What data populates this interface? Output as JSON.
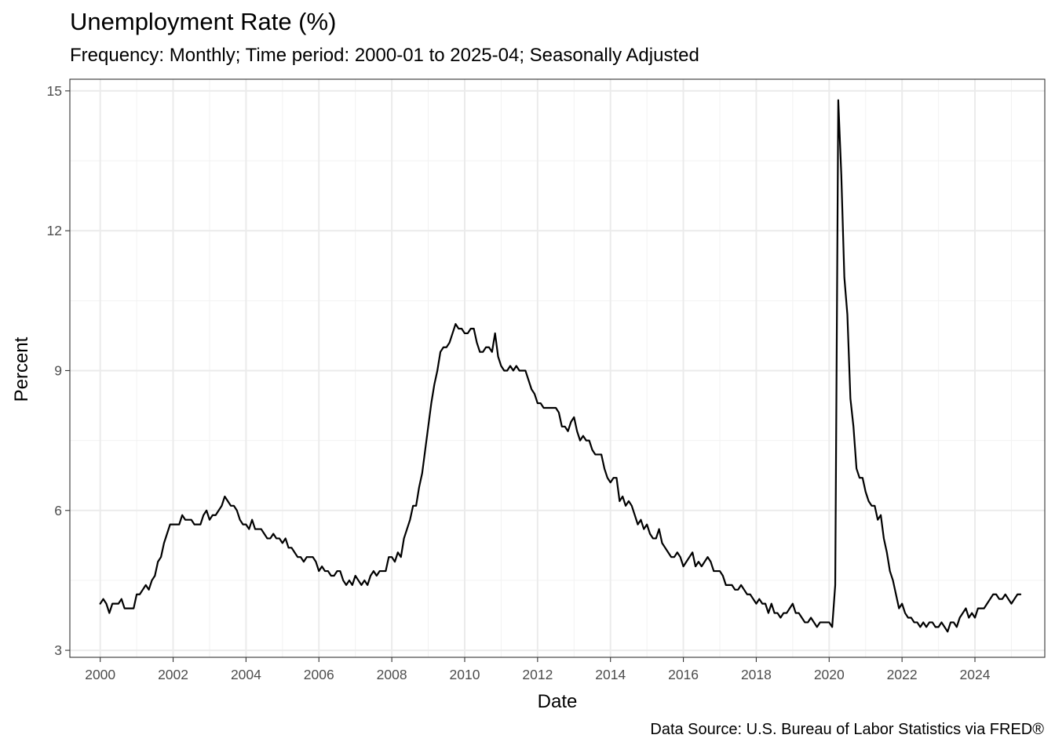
{
  "chart_data": {
    "type": "line",
    "title": "Unemployment Rate (%)",
    "subtitle": "Frequency: Monthly; Time period: 2000-01 to 2025-04; Seasonally Adjusted",
    "caption": "Data Source: U.S. Bureau of Labor Statistics via FRED®",
    "xlabel": "Date",
    "ylabel": "Percent",
    "x_start": "2000-01",
    "x_frequency": "monthly",
    "xlim": [
      "1999-03",
      "2025-12"
    ],
    "ylim": [
      2.85,
      15.25
    ],
    "x_ticks": [
      "2000",
      "2002",
      "2004",
      "2006",
      "2008",
      "2010",
      "2012",
      "2014",
      "2016",
      "2018",
      "2020",
      "2022",
      "2024"
    ],
    "y_ticks": [
      3,
      6,
      9,
      12,
      15
    ],
    "grid": true,
    "legend": "none",
    "colors": {
      "line": "#000000",
      "grid_major": "#ebebeb",
      "grid_minor": "#f2f2f2",
      "panel_border": "#333333",
      "tick_text": "#4d4d4d"
    },
    "series": [
      {
        "values": [
          4.0,
          4.1,
          4.0,
          3.8,
          4.0,
          4.0,
          4.0,
          4.1,
          3.9,
          3.9,
          3.9,
          3.9,
          4.2,
          4.2,
          4.3,
          4.4,
          4.3,
          4.5,
          4.6,
          4.9,
          5.0,
          5.3,
          5.5,
          5.7,
          5.7,
          5.7,
          5.7,
          5.9,
          5.8,
          5.8,
          5.8,
          5.7,
          5.7,
          5.7,
          5.9,
          6.0,
          5.8,
          5.9,
          5.9,
          6.0,
          6.1,
          6.3,
          6.2,
          6.1,
          6.1,
          6.0,
          5.8,
          5.7,
          5.7,
          5.6,
          5.8,
          5.6,
          5.6,
          5.6,
          5.5,
          5.4,
          5.4,
          5.5,
          5.4,
          5.4,
          5.3,
          5.4,
          5.2,
          5.2,
          5.1,
          5.0,
          5.0,
          4.9,
          5.0,
          5.0,
          5.0,
          4.9,
          4.7,
          4.8,
          4.7,
          4.7,
          4.6,
          4.6,
          4.7,
          4.7,
          4.5,
          4.4,
          4.5,
          4.4,
          4.6,
          4.5,
          4.4,
          4.5,
          4.4,
          4.6,
          4.7,
          4.6,
          4.7,
          4.7,
          4.7,
          5.0,
          5.0,
          4.9,
          5.1,
          5.0,
          5.4,
          5.6,
          5.8,
          6.1,
          6.1,
          6.5,
          6.8,
          7.3,
          7.8,
          8.3,
          8.7,
          9.0,
          9.4,
          9.5,
          9.5,
          9.6,
          9.8,
          10.0,
          9.9,
          9.9,
          9.8,
          9.8,
          9.9,
          9.9,
          9.6,
          9.4,
          9.4,
          9.5,
          9.5,
          9.4,
          9.8,
          9.3,
          9.1,
          9.0,
          9.0,
          9.1,
          9.0,
          9.1,
          9.0,
          9.0,
          9.0,
          8.8,
          8.6,
          8.5,
          8.3,
          8.3,
          8.2,
          8.2,
          8.2,
          8.2,
          8.2,
          8.1,
          7.8,
          7.8,
          7.7,
          7.9,
          8.0,
          7.7,
          7.5,
          7.6,
          7.5,
          7.5,
          7.3,
          7.2,
          7.2,
          7.2,
          6.9,
          6.7,
          6.6,
          6.7,
          6.7,
          6.2,
          6.3,
          6.1,
          6.2,
          6.1,
          5.9,
          5.7,
          5.8,
          5.6,
          5.7,
          5.5,
          5.4,
          5.4,
          5.6,
          5.3,
          5.2,
          5.1,
          5.0,
          5.0,
          5.1,
          5.0,
          4.8,
          4.9,
          5.0,
          5.1,
          4.8,
          4.9,
          4.8,
          4.9,
          5.0,
          4.9,
          4.7,
          4.7,
          4.7,
          4.6,
          4.4,
          4.4,
          4.4,
          4.3,
          4.3,
          4.4,
          4.3,
          4.2,
          4.2,
          4.1,
          4.0,
          4.1,
          4.0,
          4.0,
          3.8,
          4.0,
          3.8,
          3.8,
          3.7,
          3.8,
          3.8,
          3.9,
          4.0,
          3.8,
          3.8,
          3.7,
          3.6,
          3.6,
          3.7,
          3.6,
          3.5,
          3.6,
          3.6,
          3.6,
          3.6,
          3.5,
          4.4,
          14.8,
          13.2,
          11.0,
          10.2,
          8.4,
          7.8,
          6.9,
          6.7,
          6.7,
          6.4,
          6.2,
          6.1,
          6.1,
          5.8,
          5.9,
          5.4,
          5.1,
          4.7,
          4.5,
          4.2,
          3.9,
          4.0,
          3.8,
          3.7,
          3.7,
          3.6,
          3.6,
          3.5,
          3.6,
          3.5,
          3.6,
          3.6,
          3.5,
          3.5,
          3.6,
          3.5,
          3.4,
          3.6,
          3.6,
          3.5,
          3.7,
          3.8,
          3.9,
          3.7,
          3.8,
          3.7,
          3.9,
          3.9,
          3.9,
          4.0,
          4.1,
          4.2,
          4.2,
          4.1,
          4.1,
          4.2,
          4.1,
          4.0,
          4.1,
          4.2,
          4.2
        ]
      }
    ]
  }
}
